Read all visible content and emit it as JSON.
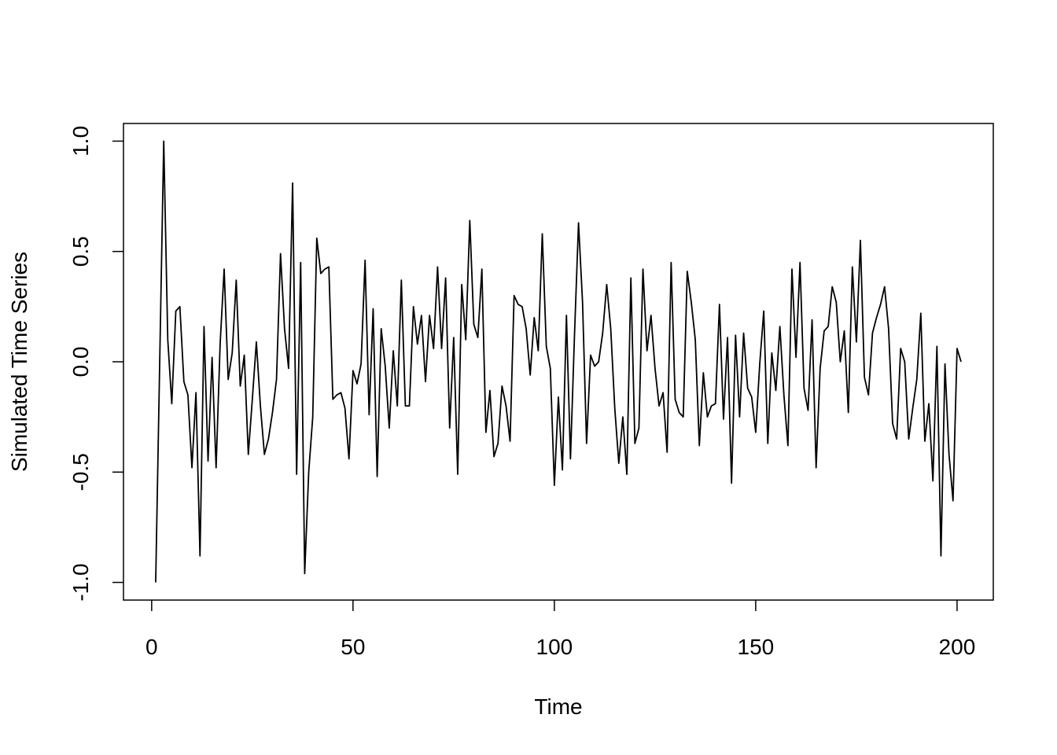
{
  "chart_data": {
    "type": "line",
    "xlabel": "Time",
    "ylabel": "Simulated Time Series",
    "x": [
      1,
      2,
      3,
      4,
      5,
      6,
      7,
      8,
      9,
      10,
      11,
      12,
      13,
      14,
      15,
      16,
      17,
      18,
      19,
      20,
      21,
      22,
      23,
      24,
      25,
      26,
      27,
      28,
      29,
      30,
      31,
      32,
      33,
      34,
      35,
      36,
      37,
      38,
      39,
      40,
      41,
      42,
      43,
      44,
      45,
      46,
      47,
      48,
      49,
      50,
      51,
      52,
      53,
      54,
      55,
      56,
      57,
      58,
      59,
      60,
      61,
      62,
      63,
      64,
      65,
      66,
      67,
      68,
      69,
      70,
      71,
      72,
      73,
      74,
      75,
      76,
      77,
      78,
      79,
      80,
      81,
      82,
      83,
      84,
      85,
      86,
      87,
      88,
      89,
      90,
      91,
      92,
      93,
      94,
      95,
      96,
      97,
      98,
      99,
      100,
      101,
      102,
      103,
      104,
      105,
      106,
      107,
      108,
      109,
      110,
      111,
      112,
      113,
      114,
      115,
      116,
      117,
      118,
      119,
      120,
      121,
      122,
      123,
      124,
      125,
      126,
      127,
      128,
      129,
      130,
      131,
      132,
      133,
      134,
      135,
      136,
      137,
      138,
      139,
      140,
      141,
      142,
      143,
      144,
      145,
      146,
      147,
      148,
      149,
      150,
      151,
      152,
      153,
      154,
      155,
      156,
      157,
      158,
      159,
      160,
      161,
      162,
      163,
      164,
      165,
      166,
      167,
      168,
      169,
      170,
      171,
      172,
      173,
      174,
      175,
      176,
      177,
      178,
      179,
      180,
      181,
      182,
      183,
      184,
      185,
      186,
      187,
      188,
      189,
      190,
      191,
      192,
      193,
      194,
      195,
      196,
      197,
      198,
      199,
      200,
      201
    ],
    "values": [
      -1.0,
      0.0,
      1.0,
      0.1,
      -0.19,
      0.23,
      0.25,
      -0.09,
      -0.15,
      -0.48,
      -0.14,
      -0.88,
      0.16,
      -0.45,
      0.02,
      -0.48,
      0.08,
      0.42,
      -0.08,
      0.04,
      0.37,
      -0.11,
      0.03,
      -0.42,
      -0.17,
      0.09,
      -0.2,
      -0.42,
      -0.35,
      -0.23,
      -0.08,
      0.49,
      0.15,
      -0.03,
      0.81,
      -0.51,
      0.45,
      -0.96,
      -0.5,
      -0.25,
      0.56,
      0.4,
      0.42,
      0.43,
      -0.17,
      -0.15,
      -0.14,
      -0.21,
      -0.44,
      -0.04,
      -0.1,
      -0.01,
      0.46,
      -0.24,
      0.24,
      -0.52,
      0.15,
      -0.02,
      -0.3,
      0.05,
      -0.2,
      0.37,
      -0.2,
      -0.2,
      0.25,
      0.08,
      0.21,
      -0.09,
      0.21,
      0.06,
      0.43,
      0.06,
      0.38,
      -0.3,
      0.11,
      -0.51,
      0.35,
      0.1,
      0.64,
      0.17,
      0.11,
      0.42,
      -0.32,
      -0.13,
      -0.43,
      -0.37,
      -0.11,
      -0.2,
      -0.36,
      0.3,
      0.26,
      0.25,
      0.15,
      -0.06,
      0.2,
      0.05,
      0.58,
      0.07,
      -0.03,
      -0.56,
      -0.16,
      -0.49,
      0.21,
      -0.44,
      0.12,
      0.63,
      0.27,
      -0.37,
      0.03,
      -0.02,
      0.0,
      0.13,
      0.35,
      0.15,
      -0.21,
      -0.46,
      -0.25,
      -0.51,
      0.38,
      -0.37,
      -0.3,
      0.42,
      0.05,
      0.21,
      -0.03,
      -0.2,
      -0.14,
      -0.41,
      0.45,
      -0.17,
      -0.23,
      -0.25,
      0.41,
      0.27,
      0.1,
      -0.38,
      -0.05,
      -0.25,
      -0.2,
      -0.19,
      0.26,
      -0.26,
      0.11,
      -0.55,
      0.12,
      -0.25,
      0.13,
      -0.12,
      -0.16,
      -0.32,
      -0.01,
      0.23,
      -0.37,
      0.04,
      -0.13,
      0.16,
      -0.15,
      -0.38,
      0.42,
      0.02,
      0.45,
      -0.12,
      -0.22,
      0.19,
      -0.48,
      -0.03,
      0.14,
      0.16,
      0.34,
      0.27,
      0.0,
      0.14,
      -0.23,
      0.43,
      0.09,
      0.55,
      -0.07,
      -0.15,
      0.13,
      0.2,
      0.26,
      0.34,
      0.15,
      -0.28,
      -0.35,
      0.06,
      0.0,
      -0.35,
      -0.21,
      -0.08,
      0.22,
      -0.36,
      -0.19,
      -0.54,
      0.07,
      -0.88,
      -0.01,
      -0.42,
      -0.63,
      0.06,
      0.0
    ],
    "color": "#000000",
    "xlim": [
      -7,
      209
    ],
    "ylim": [
      -1.08,
      1.08
    ],
    "xticks": [
      0,
      50,
      100,
      150,
      200
    ],
    "yticks": [
      {
        "value": -1,
        "label": "-1.0"
      },
      {
        "value": -0.5,
        "label": "-0.5"
      },
      {
        "value": 0,
        "label": "0.0"
      },
      {
        "value": 0.5,
        "label": "0.5"
      },
      {
        "value": 1,
        "label": "1.0"
      }
    ]
  }
}
